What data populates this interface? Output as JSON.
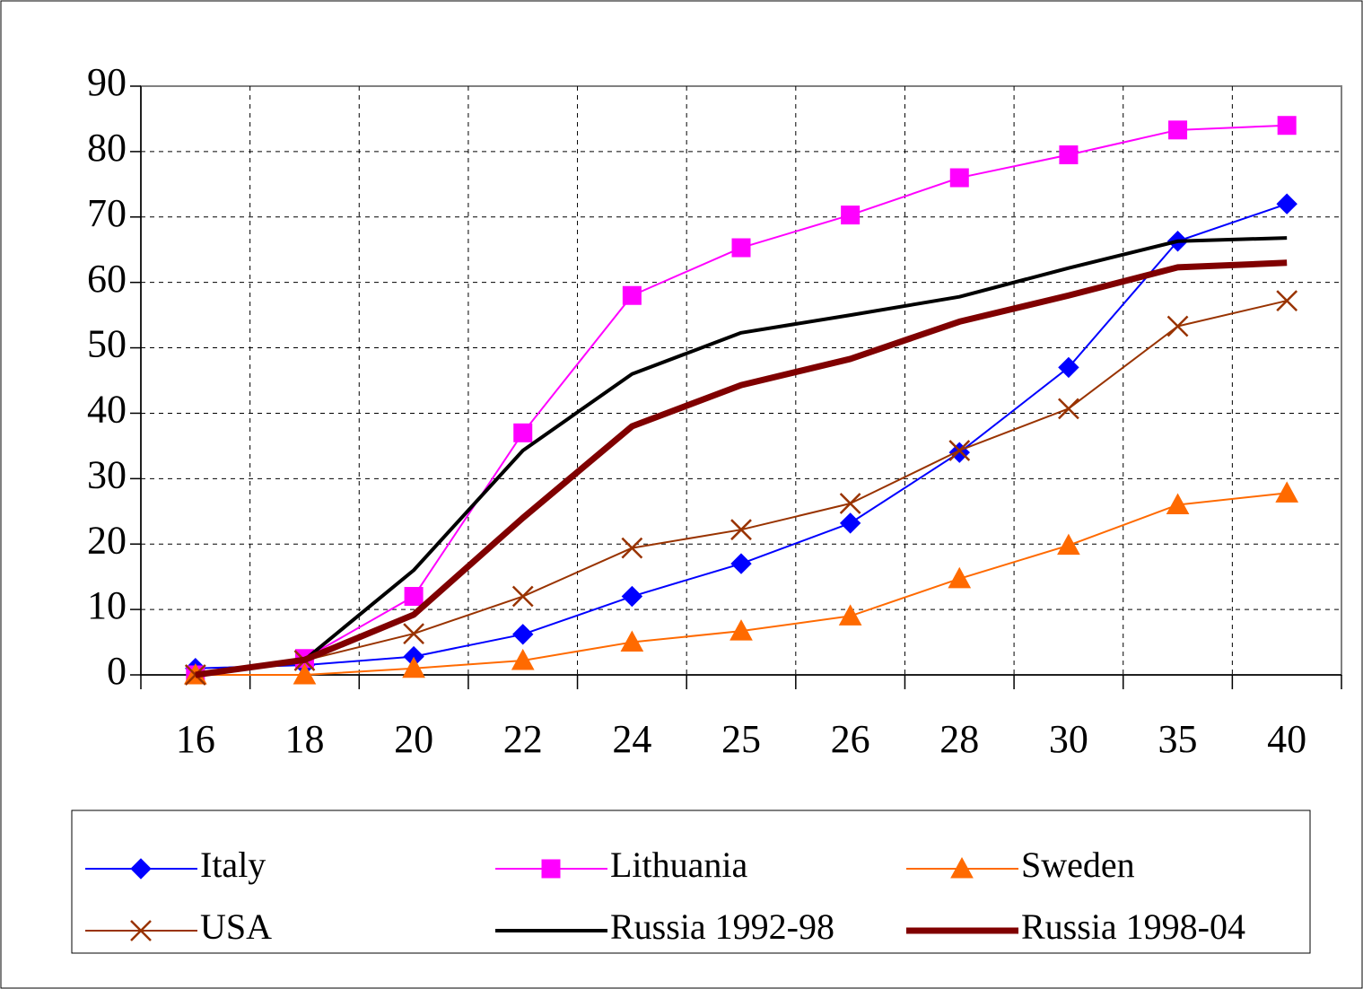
{
  "chart_data": {
    "type": "line",
    "categories": [
      "16",
      "18",
      "20",
      "22",
      "24",
      "25",
      "26",
      "28",
      "30",
      "35",
      "40"
    ],
    "ylim": [
      0,
      90
    ],
    "yticks": [
      0,
      10,
      20,
      30,
      40,
      50,
      60,
      70,
      80,
      90
    ],
    "grid": true,
    "series": [
      {
        "name": "Italy",
        "color": "#0000ff",
        "marker": "diamond",
        "line_width": 2,
        "values": [
          1,
          1.5,
          2.8,
          6.2,
          12,
          17,
          23.2,
          34,
          47,
          66.3,
          72
        ]
      },
      {
        "name": "Lithuania",
        "color": "#ff00ff",
        "marker": "square",
        "line_width": 2,
        "values": [
          0,
          2.5,
          12,
          37,
          58,
          65.3,
          70.3,
          76,
          79.5,
          83.3,
          84
        ]
      },
      {
        "name": "Sweden",
        "color": "#ff6a00",
        "marker": "triangle",
        "line_width": 2,
        "values": [
          0,
          0,
          1,
          2.2,
          5,
          6.7,
          9,
          14.7,
          19.8,
          26,
          27.8
        ]
      },
      {
        "name": "USA",
        "color": "#993300",
        "marker": "x",
        "line_width": 2,
        "values": [
          0,
          2.2,
          6.3,
          12,
          19.4,
          22.2,
          26.2,
          34.3,
          40.7,
          53.3,
          57.2
        ]
      },
      {
        "name": "Russia 1992-98",
        "color": "#000000",
        "marker": "none",
        "line_width": 4,
        "values": [
          0,
          2.3,
          16,
          34.3,
          46,
          52.3,
          55,
          57.8,
          62.2,
          66.3,
          66.8
        ]
      },
      {
        "name": "Russia 1998-04",
        "color": "#800000",
        "marker": "none",
        "line_width": 7,
        "values": [
          0,
          2.3,
          9.2,
          24,
          38,
          44.3,
          48.3,
          54,
          58,
          62.3,
          63
        ]
      }
    ]
  }
}
